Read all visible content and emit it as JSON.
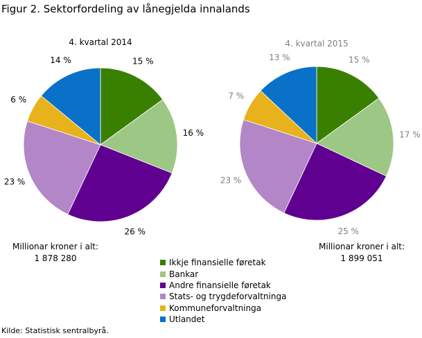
{
  "title": "Figur 2. Sektorfordeling av lånegjelda innalands",
  "source": "Kilde: Statistisk sentralbyrå.",
  "legend": [
    {
      "label": "Ikkje finansielle føretak",
      "color": "#3a8000"
    },
    {
      "label": "Bankar",
      "color": "#9dc784"
    },
    {
      "label": "Andre finansielle føretak",
      "color": "#600091"
    },
    {
      "label": "Stats- og trygdeforvaltninga",
      "color": "#b286c7"
    },
    {
      "label": "Kommuneforvaltninga",
      "color": "#e8b21c"
    },
    {
      "label": "Utlandet",
      "color": "#0a71c8"
    }
  ],
  "totals": [
    {
      "label": "Millionar kroner i alt:",
      "value": "1 878 280"
    },
    {
      "label": "Millionar kroner i alt:",
      "value": "1 899 051"
    }
  ],
  "chart_data": [
    {
      "type": "pie",
      "title": "4. kvartal 2014",
      "label_color": "#000000",
      "categories": [
        "Ikkje finansielle føretak",
        "Bankar",
        "Andre finansielle føretak",
        "Stats- og trygdeforvaltninga",
        "Kommuneforvaltninga",
        "Utlandet"
      ],
      "values": [
        15,
        16,
        26,
        23,
        6,
        14
      ],
      "labels": [
        "15 %",
        "16 %",
        "26 %",
        "23 %",
        "6 %",
        "14 %"
      ]
    },
    {
      "type": "pie",
      "title": "4. kvartal 2015",
      "label_color": "#7f7f7f",
      "categories": [
        "Ikkje finansielle føretak",
        "Bankar",
        "Andre finansielle føretak",
        "Stats- og trygdeforvaltninga",
        "Kommuneforvaltninga",
        "Utlandet"
      ],
      "values": [
        15,
        17,
        25,
        23,
        7,
        13
      ],
      "labels": [
        "15 %",
        "17 %",
        "25 %",
        "23 %",
        "7 %",
        "13 %"
      ]
    }
  ]
}
